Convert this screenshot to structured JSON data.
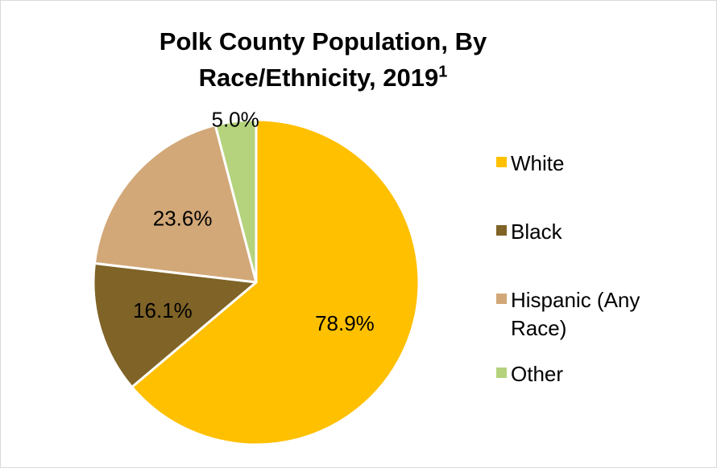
{
  "chart_data": {
    "type": "pie",
    "title": "Polk County Population, By Race/Ethnicity, 2019",
    "title_superscript": "1",
    "slices": [
      {
        "label": "White",
        "value": 78.9,
        "display": "78.9%",
        "color": "#FFC000"
      },
      {
        "label": "Black",
        "value": 16.1,
        "display": "16.1%",
        "color": "#7F6327"
      },
      {
        "label": "Hispanic (Any Race)",
        "value": 23.6,
        "display": "23.6%",
        "color": "#D2A878"
      },
      {
        "label": "Other",
        "value": 5.0,
        "display": "5.0%",
        "color": "#B4D37C"
      }
    ],
    "legend_placement": "right"
  }
}
